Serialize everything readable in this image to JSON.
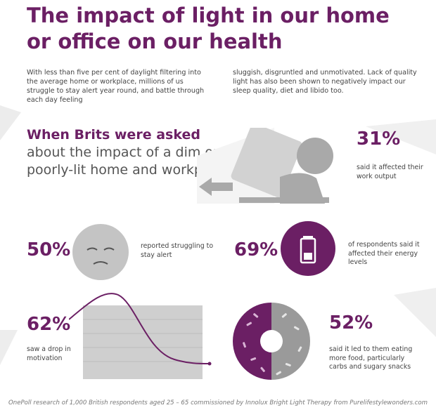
{
  "title": "The impact of light in our home or office on our health",
  "intro_left": "With less than five per cent of daylight filtering into the average home or workplace, millions of us struggle to stay alert year round, and battle through each day feeling",
  "intro_right": "sluggish, disgruntled and unmotivated. Lack of quality light has also been shown to negatively impact our sleep quality, diet and libido too.",
  "headline": {
    "highlight": "When Brits were asked",
    "rest": " about the impact of a dim or poorly-lit home and workplace:"
  },
  "stats": [
    {
      "value": "31%",
      "text": "said it affected their work output",
      "icon": "person-at-desk-icon"
    },
    {
      "value": "50%",
      "text": "reported struggling to stay alert",
      "icon": "sleepy-face-icon"
    },
    {
      "value": "69%",
      "text": "of respondents said it affected their energy levels",
      "icon": "low-battery-icon"
    },
    {
      "value": "62%",
      "text": "saw a drop in motivation",
      "icon": "declining-graph-icon"
    },
    {
      "value": "52%",
      "text": "said it led to them eating more food, particularly carbs and sugary snacks",
      "icon": "donut-icon"
    }
  ],
  "footer": "OnePoll research of 1,000 British respondents aged 25 – 65 commissioned by Innolux Bright Light Therapy from Purelifestylewonders.com",
  "colors": {
    "accent": "#6b1f64",
    "grey": "#c8c8c8",
    "dark_grey": "#9a9a9a"
  }
}
